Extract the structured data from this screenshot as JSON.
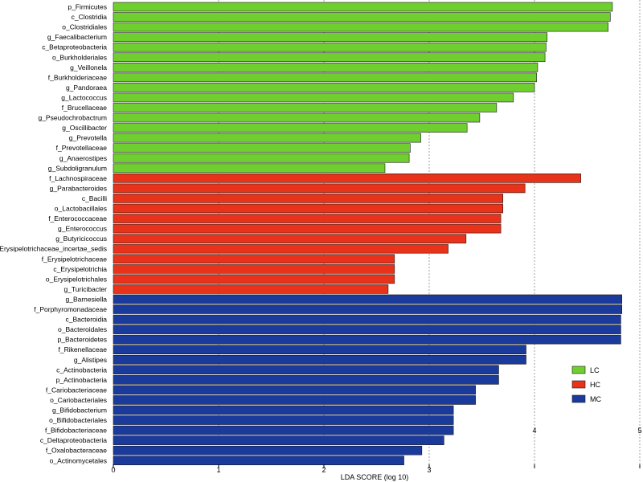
{
  "chart_data": {
    "type": "bar",
    "orientation": "horizontal",
    "xlabel": "LDA SCORE (log 10)",
    "xlim": [
      0,
      5
    ],
    "xticks": [
      "0",
      "1",
      "2",
      "3",
      "4",
      "5"
    ],
    "grid": "vertical dashed",
    "legend_position": "right",
    "series": [
      {
        "name": "LC",
        "color": "#6fcf2f",
        "categories": [
          "p_Firmicutes",
          "c_Clostridia",
          "o_Clostridiales",
          "g_Faecalibacterium",
          "c_Betaproteobacteria",
          "o_Burkholderiales",
          "g_Veillonela",
          "f_Burkholderiaceae",
          "g_Pandoraea",
          "g_Lactococcus",
          "f_Brucellaceae",
          "g_Pseudochrobactrum",
          "g_Oscillibacter",
          "g_Prevotella",
          "f_Prevotellaceae",
          "g_Anaerostipes",
          "g_Subdoligranulum"
        ],
        "values": [
          4.74,
          4.72,
          4.7,
          4.12,
          4.11,
          4.1,
          4.03,
          4.02,
          4.0,
          3.8,
          3.64,
          3.48,
          3.36,
          2.92,
          2.82,
          2.81,
          2.58
        ]
      },
      {
        "name": "HC",
        "color": "#e8321a",
        "categories": [
          "f_Lachnospiraceae",
          "g_Parabacteroides",
          "c_Bacilli",
          "o_Lactobacillales",
          "f_Enterococcaceae",
          "g_Enterococcus",
          "g_Butyricicoccus",
          "g_Erysipelotrichaceae_incertae_sedis",
          "f_Erysipelotrichaceae",
          "c_Erysipelotrichia",
          "o_Erysipelotrichales",
          "g_Turicibacter"
        ],
        "values": [
          4.44,
          3.91,
          3.7,
          3.7,
          3.68,
          3.68,
          3.35,
          3.18,
          2.67,
          2.67,
          2.67,
          2.61
        ]
      },
      {
        "name": "MC",
        "color": "#1a3a9c",
        "categories": [
          "g_Barnesiella",
          "f_Porphyromonadaceae",
          "c_Bacteroidia",
          "o_Bacteroidales",
          "p_Bacteroidetes",
          "f_Rikenellaceae",
          "g_Alistipes",
          "c_Actinobacteria",
          "p_Actinobacteria",
          "f_Cariobacteriaceae",
          "o_Cariobacteriales",
          "g_Bifidobacterium",
          "o_Bifidobacteriales",
          "f_Bifidobacteriaceae",
          "c_Deltaproteobacteria",
          "f_Oxalobacteraceae",
          "o_Actinomycetales"
        ],
        "values": [
          4.83,
          4.83,
          4.82,
          4.82,
          4.82,
          3.92,
          3.92,
          3.66,
          3.66,
          3.44,
          3.44,
          3.23,
          3.23,
          3.23,
          3.14,
          2.93,
          2.76
        ]
      }
    ]
  }
}
